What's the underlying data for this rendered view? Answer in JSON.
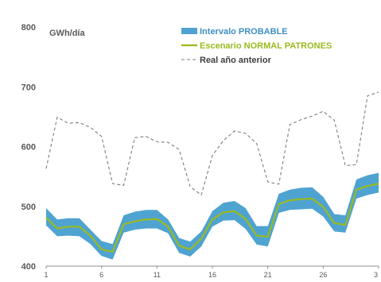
{
  "chart_data": {
    "type": "line",
    "unit_label": "GWh/día",
    "ylim": [
      400,
      800
    ],
    "yticks": [
      "400",
      "500",
      "600",
      "700",
      "800"
    ],
    "xlim": [
      1,
      31
    ],
    "xtick_labels": [
      "1",
      "6",
      "11",
      "16",
      "21",
      "26",
      "3"
    ],
    "x": [
      1,
      2,
      3,
      4,
      5,
      6,
      7,
      8,
      9,
      10,
      11,
      12,
      13,
      14,
      15,
      16,
      17,
      18,
      19,
      20,
      21,
      22,
      23,
      24,
      25,
      26,
      27,
      28,
      29,
      30,
      31
    ],
    "legend_position": "top",
    "series": [
      {
        "name": "Intervalo PROBABLE",
        "kind": "band",
        "color": "#4fa3d1",
        "lower": [
          468,
          450,
          451,
          450,
          437,
          417,
          411,
          456,
          461,
          463,
          463,
          455,
          422,
          416,
          433,
          466,
          476,
          477,
          462,
          436,
          433,
          489,
          494,
          495,
          496,
          483,
          458,
          456,
          513,
          519,
          523
        ],
        "upper": [
          497,
          478,
          480,
          480,
          461,
          442,
          437,
          485,
          491,
          494,
          494,
          478,
          447,
          441,
          458,
          492,
          506,
          509,
          497,
          467,
          467,
          521,
          528,
          531,
          532,
          516,
          487,
          485,
          545,
          552,
          556
        ]
      },
      {
        "name": "Escenario NORMAL PATRONES",
        "kind": "line",
        "color": "#9aba1f",
        "values": [
          481,
          463,
          466,
          466,
          451,
          428,
          424,
          470,
          475,
          478,
          479,
          466,
          434,
          428,
          446,
          478,
          490,
          492,
          479,
          451,
          449,
          504,
          510,
          512,
          513,
          499,
          472,
          469,
          528,
          534,
          538
        ]
      },
      {
        "name": "Real año anterior",
        "kind": "line-dashed",
        "color": "#7f7f7f",
        "values": [
          563,
          649,
          639,
          640,
          632,
          617,
          538,
          535,
          615,
          617,
          608,
          607,
          595,
          533,
          519,
          585,
          610,
          626,
          622,
          605,
          541,
          537,
          637,
          645,
          651,
          659,
          644,
          568,
          570,
          685,
          691
        ]
      }
    ]
  }
}
